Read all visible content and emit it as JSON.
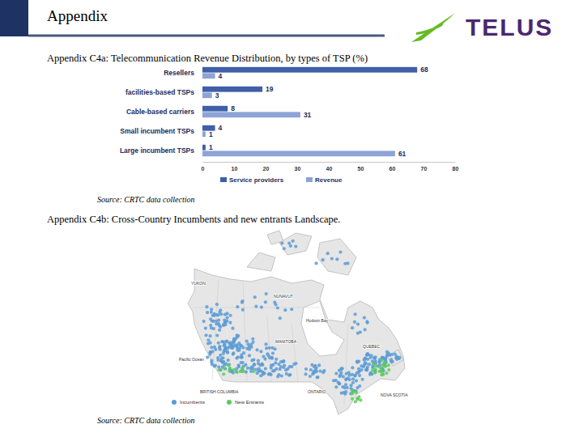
{
  "slide": {
    "header": "Appendix",
    "logo": "TELUS",
    "sections": [
      {
        "title": "Appendix C4a: Telecommunication Revenue Distribution, by types of TSP (%)",
        "source": "Source: CRTC data collection"
      },
      {
        "title": "Appendix C4b: Cross-Country Incumbents and new entrants Landscape.",
        "source": "Source: CRTC data collection",
        "map": {
          "labels": [
            "YUKON",
            "NUNAVUT",
            "Hudson Bay",
            "ONTARIO",
            "QUEBEC",
            "MANITOBA",
            "BRITISH COLUMBIA",
            "Pacific Ocean",
            "NOVA SCOTIA"
          ],
          "legend": [
            {
              "name": "Incumbents",
              "color": "#5b9bd5"
            },
            {
              "name": "New Entrants",
              "color": "#5ccc5c"
            }
          ]
        }
      }
    ]
  },
  "chart_data": {
    "type": "bar",
    "orientation": "horizontal",
    "categories": [
      "Resellers",
      "facilities-based TSPs",
      "Cable-based carriers",
      "Small incumbent TSPs",
      "Large incumbent TSPs"
    ],
    "series": [
      {
        "name": "Service providers",
        "color": "#3f5fa8",
        "values": [
          68,
          19,
          8,
          4,
          1
        ]
      },
      {
        "name": "Revenue",
        "color": "#8ea3d6",
        "values": [
          4,
          3,
          31,
          1,
          61
        ]
      }
    ],
    "xlim": [
      0,
      80
    ],
    "xticks": [
      0,
      10,
      20,
      30,
      40,
      50,
      60,
      70,
      80
    ],
    "data_labels": true,
    "legend": "bottom",
    "grid": false
  }
}
